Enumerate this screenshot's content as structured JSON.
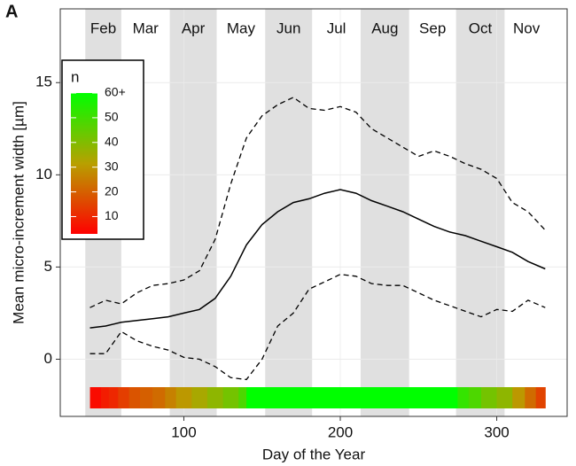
{
  "panel_label": "A",
  "chart_data": {
    "type": "line",
    "xlabel": "Day of the Year",
    "ylabel": "Mean micro-increment width [µm]",
    "xlim": [
      21,
      345
    ],
    "ylim": [
      -3.1,
      19.0
    ],
    "xticks": [
      100,
      200,
      300
    ],
    "yticks": [
      0,
      5,
      10,
      15
    ],
    "grid": true,
    "months": [
      {
        "label": "Feb",
        "start": 37,
        "end": 60,
        "shaded": true
      },
      {
        "label": "Mar",
        "start": 60,
        "end": 91,
        "shaded": false
      },
      {
        "label": "Apr",
        "start": 91,
        "end": 121,
        "shaded": true
      },
      {
        "label": "May",
        "start": 121,
        "end": 152,
        "shaded": false
      },
      {
        "label": "Jun",
        "start": 152,
        "end": 182,
        "shaded": true
      },
      {
        "label": "Jul",
        "start": 182,
        "end": 213,
        "shaded": false
      },
      {
        "label": "Aug",
        "start": 213,
        "end": 244,
        "shaded": true
      },
      {
        "label": "Sep",
        "start": 244,
        "end": 274,
        "shaded": false
      },
      {
        "label": "Oct",
        "start": 274,
        "end": 305,
        "shaded": true
      },
      {
        "label": "Nov",
        "start": 305,
        "end": 333,
        "shaded": false
      }
    ],
    "x": [
      40,
      50,
      60,
      70,
      80,
      90,
      100,
      110,
      120,
      130,
      140,
      150,
      160,
      170,
      180,
      190,
      200,
      210,
      220,
      230,
      240,
      250,
      260,
      270,
      280,
      290,
      300,
      310,
      320,
      331
    ],
    "series": [
      {
        "color": "#000000",
        "dashed": false,
        "values": [
          1.7,
          1.8,
          2.0,
          2.1,
          2.2,
          2.3,
          2.5,
          2.7,
          3.3,
          4.5,
          6.2,
          7.3,
          8.0,
          8.5,
          8.7,
          9.0,
          9.2,
          9.0,
          8.6,
          8.3,
          8.0,
          7.6,
          7.2,
          6.9,
          6.7,
          6.4,
          6.1,
          5.8,
          5.3,
          4.9
        ]
      },
      {
        "color": "#000000",
        "dashed": true,
        "values": [
          2.8,
          3.2,
          3.0,
          3.6,
          4.0,
          4.1,
          4.3,
          4.8,
          6.5,
          9.5,
          12.0,
          13.2,
          13.8,
          14.2,
          13.6,
          13.5,
          13.7,
          13.4,
          12.5,
          12.0,
          11.5,
          11.0,
          11.3,
          11.0,
          10.6,
          10.3,
          9.8,
          8.5,
          8.0,
          7.0
        ]
      },
      {
        "color": "#000000",
        "dashed": true,
        "values": [
          0.3,
          0.3,
          1.5,
          1.0,
          0.7,
          0.5,
          0.1,
          0.0,
          -0.4,
          -1.0,
          -1.1,
          0.0,
          1.8,
          2.5,
          3.8,
          4.2,
          4.6,
          4.5,
          4.1,
          4.0,
          4.0,
          3.6,
          3.2,
          2.9,
          2.6,
          2.3,
          2.7,
          2.6,
          3.2,
          2.8
        ]
      }
    ],
    "strip": {
      "edges": [
        40,
        47,
        52,
        58,
        65,
        72,
        80,
        88,
        95,
        105,
        115,
        125,
        135,
        140,
        275,
        282,
        290,
        300,
        310,
        318,
        325,
        331
      ],
      "values": [
        5,
        8,
        10,
        14,
        18,
        20,
        22,
        26,
        30,
        34,
        38,
        42,
        48,
        60,
        52,
        48,
        42,
        38,
        30,
        22,
        15
      ]
    },
    "colorbar": {
      "title": "n",
      "lim": [
        3,
        60
      ],
      "colors": [
        "#ff0000",
        "#b8a000",
        "#00ff00"
      ],
      "ticks": [
        10,
        20,
        30,
        40,
        50,
        {
          "value": 60,
          "label": "60+"
        }
      ]
    }
  }
}
